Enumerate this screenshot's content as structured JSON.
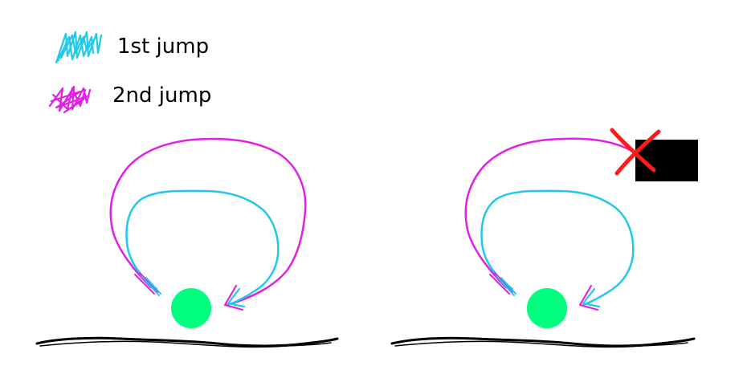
{
  "legend": {
    "items": [
      {
        "label": "1st jump",
        "color": "#22c8ea",
        "swatch": "cyan-scribble"
      },
      {
        "label": "2nd jump",
        "color": "#e020e8",
        "swatch": "magenta-scribble"
      }
    ]
  },
  "colors": {
    "ball": "#00ff7f",
    "ground": "#000000",
    "obstacle": "#000000",
    "blocked_mark": "#ff1a1a"
  },
  "panels": [
    {
      "id": "left",
      "obstacle": false
    },
    {
      "id": "right",
      "obstacle": true
    }
  ]
}
